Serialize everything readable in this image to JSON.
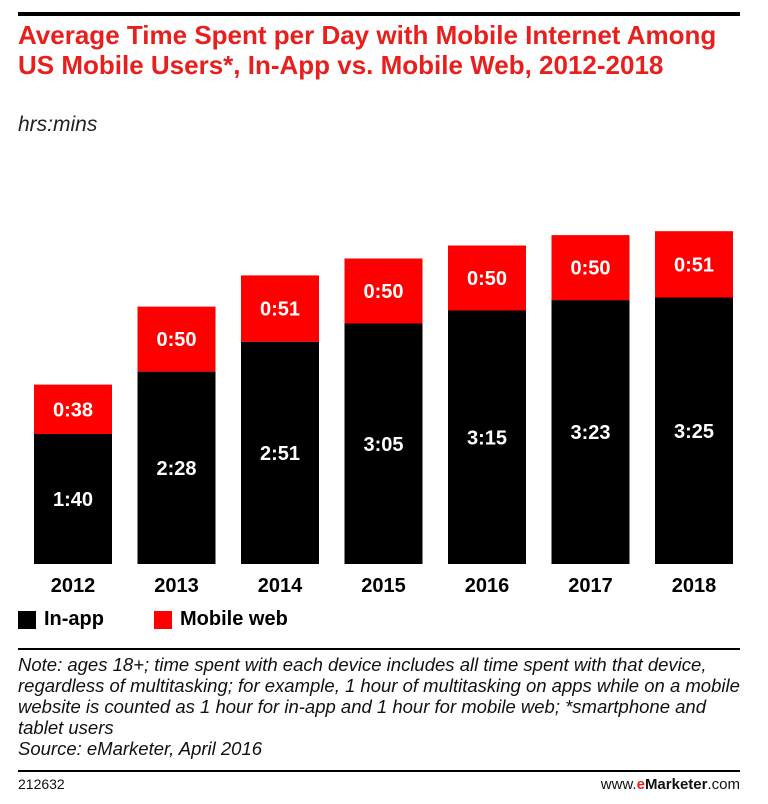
{
  "header": {
    "title": "Average Time Spent per Day with Mobile Internet Among US Mobile Users*, In-App vs. Mobile Web, 2012-2018",
    "subtitle": "hrs:mins"
  },
  "legend": {
    "items": [
      {
        "label": "In-app",
        "color": "#000000"
      },
      {
        "label": "Mobile web",
        "color": "#ff0000"
      }
    ]
  },
  "note": {
    "text": "Note: ages 18+; time spent with each device includes all time spent with that device, regardless of multitasking; for example, 1 hour of multitasking on apps while on a mobile website is counted as 1 hour for in-app and 1 hour for mobile web; *smartphone and tablet users",
    "source": "Source: eMarketer, April 2016"
  },
  "footer": {
    "chart_id": "212632",
    "brand_prefix": "www.",
    "brand_e": "e",
    "brand_name": "Marketer",
    "brand_suffix": ".com"
  },
  "chart_data": {
    "type": "bar",
    "stacked": true,
    "title": "Average Time Spent per Day with Mobile Internet Among US Mobile Users*, In-App vs. Mobile Web, 2012-2018",
    "unit": "hrs:mins",
    "categories": [
      "2012",
      "2013",
      "2014",
      "2015",
      "2016",
      "2017",
      "2018"
    ],
    "series": [
      {
        "name": "In-app",
        "color": "#000000",
        "values": [
          100,
          148,
          171,
          185,
          195,
          203,
          205
        ],
        "labels": [
          "1:40",
          "2:28",
          "2:51",
          "3:05",
          "3:15",
          "3:23",
          "3:25"
        ]
      },
      {
        "name": "Mobile web",
        "color": "#ff0000",
        "values": [
          38,
          50,
          51,
          50,
          50,
          50,
          51
        ],
        "labels": [
          "0:38",
          "0:50",
          "0:51",
          "0:50",
          "0:50",
          "0:50",
          "0:51"
        ]
      }
    ],
    "legend_position": "bottom-left",
    "grid": false
  }
}
